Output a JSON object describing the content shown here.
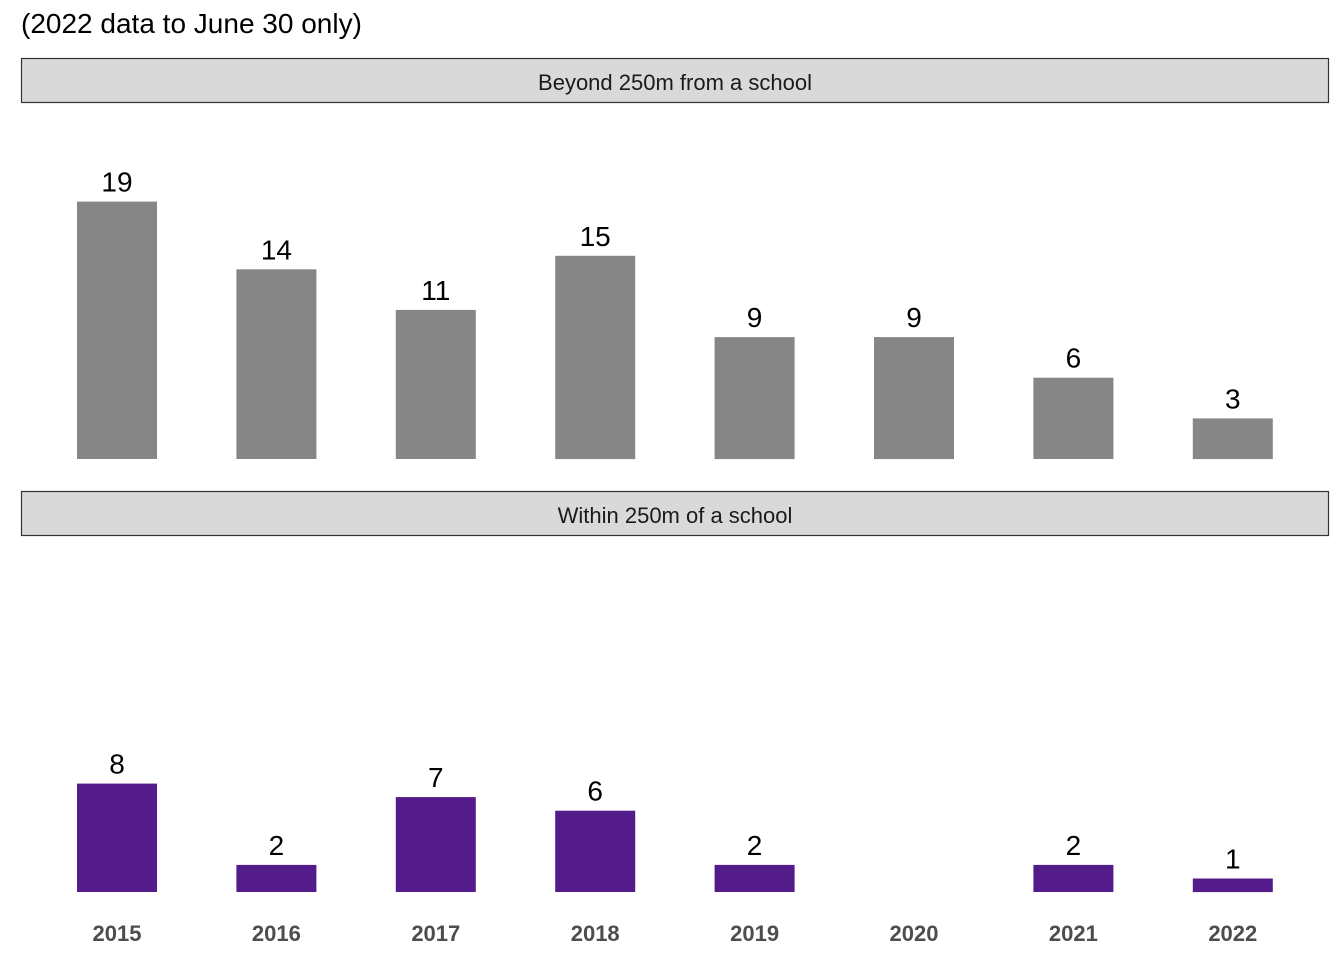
{
  "chart_data": {
    "type": "bar",
    "subtitle": "(2022 data to June 30 only)",
    "categories": [
      "2015",
      "2016",
      "2017",
      "2018",
      "2019",
      "2020",
      "2021",
      "2022"
    ],
    "facets": [
      {
        "name": "Beyond 250m from a school",
        "color": "#868686",
        "values": [
          19,
          14,
          11,
          15,
          9,
          9,
          6,
          3
        ]
      },
      {
        "name": "Within 250m of a school",
        "color": "#541b8b",
        "values": [
          8,
          2,
          7,
          6,
          2,
          null,
          2,
          1
        ]
      }
    ],
    "xlabel": "",
    "ylabel": "",
    "ylim": [
      0,
      19
    ],
    "grid": false,
    "shared_x_axis": true
  }
}
